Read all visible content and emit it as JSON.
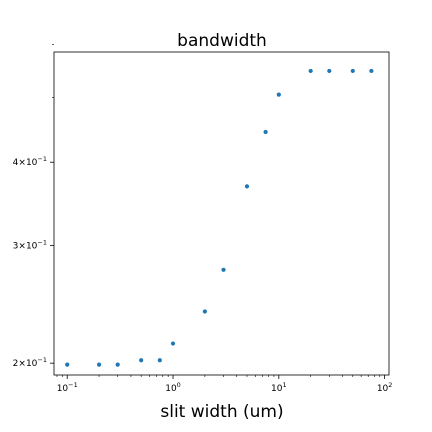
{
  "chart_data": {
    "type": "scatter",
    "title": "bandwidth",
    "xlabel": "slit width (um)",
    "ylabel": "",
    "xscale": "log",
    "yscale": "log",
    "xlim": [
      0.075,
      110
    ],
    "ylim": [
      0.192,
      0.585
    ],
    "grid": false,
    "legend": "none",
    "marker_color": "#1f77b4",
    "x_major_ticks": [
      {
        "value": 0.1,
        "base": "10",
        "exp": "−1"
      },
      {
        "value": 1,
        "base": "10",
        "exp": "0"
      },
      {
        "value": 10,
        "base": "10",
        "exp": "1"
      },
      {
        "value": 100,
        "base": "10",
        "exp": "2"
      }
    ],
    "y_major_ticks": [
      {
        "value": 0.2,
        "mantissa": "2",
        "base": "10",
        "exp": "−1"
      },
      {
        "value": 0.3,
        "mantissa": "3",
        "base": "10",
        "exp": "−1"
      },
      {
        "value": 0.4,
        "mantissa": "4",
        "base": "10",
        "exp": "−1"
      }
    ],
    "y_minor_ticks": [
      0.5,
      0.6
    ],
    "series": [
      {
        "x": [
          0.1,
          0.2,
          0.3,
          0.5,
          0.75,
          1,
          2,
          3,
          5,
          7.5,
          10,
          20,
          30,
          50,
          75
        ],
        "y": [
          0.199,
          0.199,
          0.199,
          0.202,
          0.202,
          0.214,
          0.239,
          0.276,
          0.368,
          0.444,
          0.505,
          0.548,
          0.548,
          0.548,
          0.548
        ]
      }
    ]
  }
}
